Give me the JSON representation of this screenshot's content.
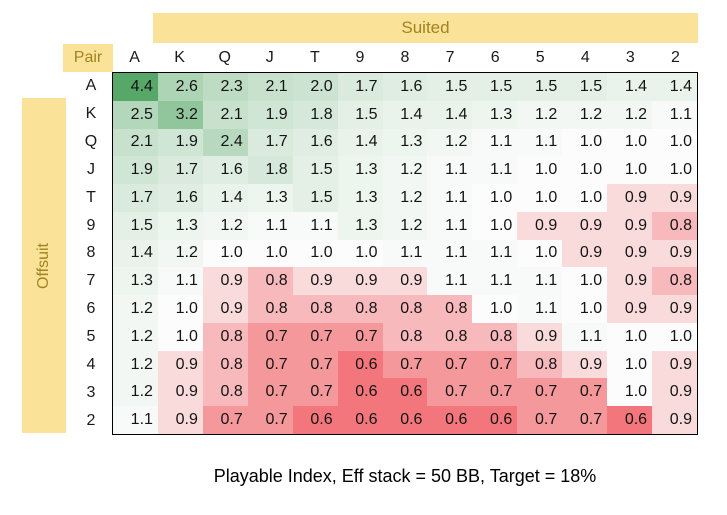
{
  "labels": {
    "suited": "Suited",
    "pair": "Pair",
    "offsuit": "Offsuit"
  },
  "ranks": [
    "A",
    "K",
    "Q",
    "J",
    "T",
    "9",
    "8",
    "7",
    "6",
    "5",
    "4",
    "3",
    "2"
  ],
  "caption": "Playable Index, Eff stack = 50 BB, Target = 18%",
  "colors": {
    "band_bg": "#FBE299",
    "band_text": "#A1831F",
    "cell_text": "#141414",
    "matrix_border": "#000000"
  },
  "chart_data": {
    "type": "heatmap",
    "title": "Playable Index, Eff stack = 50 BB, Target = 18%",
    "x_axis_label": "Suited",
    "y_axis_label": "Offsuit",
    "corner_label": "Pair",
    "x_labels": [
      "A",
      "K",
      "Q",
      "J",
      "T",
      "9",
      "8",
      "7",
      "6",
      "5",
      "4",
      "3",
      "2"
    ],
    "y_labels": [
      "A",
      "K",
      "Q",
      "J",
      "T",
      "9",
      "8",
      "7",
      "6",
      "5",
      "4",
      "3",
      "2"
    ],
    "values": [
      [
        4.4,
        2.6,
        2.3,
        2.1,
        2.0,
        1.7,
        1.6,
        1.5,
        1.5,
        1.5,
        1.5,
        1.4,
        1.4
      ],
      [
        2.5,
        3.2,
        2.1,
        1.9,
        1.8,
        1.5,
        1.4,
        1.4,
        1.3,
        1.2,
        1.2,
        1.2,
        1.1
      ],
      [
        2.1,
        1.9,
        2.4,
        1.7,
        1.6,
        1.4,
        1.3,
        1.2,
        1.1,
        1.1,
        1.0,
        1.0,
        1.0
      ],
      [
        1.9,
        1.7,
        1.6,
        1.8,
        1.5,
        1.3,
        1.2,
        1.1,
        1.1,
        1.0,
        1.0,
        1.0,
        1.0
      ],
      [
        1.7,
        1.6,
        1.4,
        1.3,
        1.5,
        1.3,
        1.2,
        1.1,
        1.0,
        1.0,
        1.0,
        0.9,
        0.9
      ],
      [
        1.5,
        1.3,
        1.2,
        1.1,
        1.1,
        1.3,
        1.2,
        1.1,
        1.0,
        0.9,
        0.9,
        0.9,
        0.8
      ],
      [
        1.4,
        1.2,
        1.0,
        1.0,
        1.0,
        1.0,
        1.1,
        1.1,
        1.1,
        1.0,
        0.9,
        0.9,
        0.9
      ],
      [
        1.3,
        1.1,
        0.9,
        0.8,
        0.9,
        0.9,
        0.9,
        1.1,
        1.1,
        1.1,
        1.0,
        0.9,
        0.8
      ],
      [
        1.2,
        1.0,
        0.9,
        0.8,
        0.8,
        0.8,
        0.8,
        0.8,
        1.0,
        1.1,
        1.0,
        0.9,
        0.9
      ],
      [
        1.2,
        1.0,
        0.8,
        0.7,
        0.7,
        0.7,
        0.8,
        0.8,
        0.8,
        0.9,
        1.1,
        1.0,
        1.0
      ],
      [
        1.2,
        0.9,
        0.8,
        0.7,
        0.7,
        0.6,
        0.7,
        0.7,
        0.7,
        0.8,
        0.9,
        1.0,
        0.9
      ],
      [
        1.2,
        0.9,
        0.8,
        0.7,
        0.7,
        0.6,
        0.6,
        0.7,
        0.7,
        0.7,
        0.7,
        1.0,
        0.9
      ],
      [
        1.1,
        0.9,
        0.7,
        0.7,
        0.6,
        0.6,
        0.6,
        0.6,
        0.6,
        0.7,
        0.7,
        0.6,
        0.9
      ]
    ],
    "value_format": "one_decimal",
    "color_scale": {
      "min_value": 0.6,
      "min_color": "#F2767B",
      "mid_value": 1.0,
      "mid_color": "#FCFCFC",
      "max_value": 4.4,
      "max_color": "#57A768"
    },
    "legend_position": "none",
    "grid": false
  }
}
